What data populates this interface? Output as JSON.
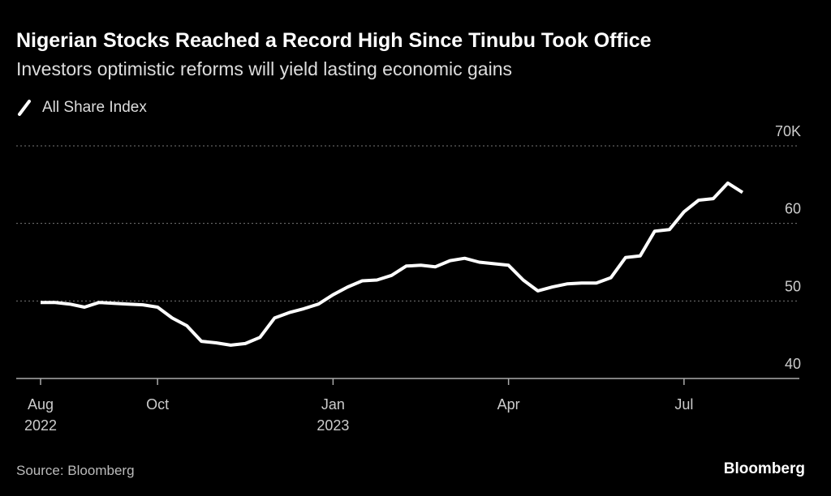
{
  "chart_data": {
    "type": "line",
    "title": "Nigerian Stocks Reached a Record High Since Tinubu Took Office",
    "subtitle": "Investors optimistic reforms will yield lasting economic gains",
    "source": "Source: Bloomberg",
    "brand": "Bloomberg",
    "categories": [
      "Aug 2022",
      null,
      null,
      null,
      null,
      null,
      null,
      null,
      "Oct",
      null,
      null,
      null,
      null,
      null,
      null,
      null,
      null,
      null,
      null,
      null,
      "Jan 2023",
      null,
      null,
      null,
      null,
      null,
      null,
      null,
      null,
      null,
      null,
      null,
      "Apr",
      null,
      null,
      null,
      null,
      null,
      null,
      null,
      null,
      null,
      null,
      null,
      "Jul",
      null,
      null,
      null,
      null
    ],
    "series": [
      {
        "name": "All Share Index",
        "color": "#ffffff",
        "values": [
          49.8,
          49.8,
          49.6,
          49.2,
          49.8,
          49.7,
          49.6,
          49.5,
          49.2,
          47.8,
          46.8,
          44.8,
          44.6,
          44.3,
          44.5,
          45.3,
          47.8,
          48.5,
          49.0,
          49.6,
          50.8,
          51.8,
          52.6,
          52.7,
          53.3,
          54.5,
          54.6,
          54.4,
          55.2,
          55.5,
          55.0,
          54.8,
          54.6,
          52.7,
          51.3,
          51.8,
          52.2,
          52.3,
          52.3,
          53.0,
          55.6,
          55.8,
          59.0,
          59.2,
          61.5,
          63.0,
          63.2,
          65.2,
          64.0
        ]
      }
    ],
    "ylim": [
      40,
      70
    ],
    "yticks": [
      40,
      50,
      60,
      {
        "value": 70,
        "label": "70K"
      }
    ],
    "grid": true
  }
}
